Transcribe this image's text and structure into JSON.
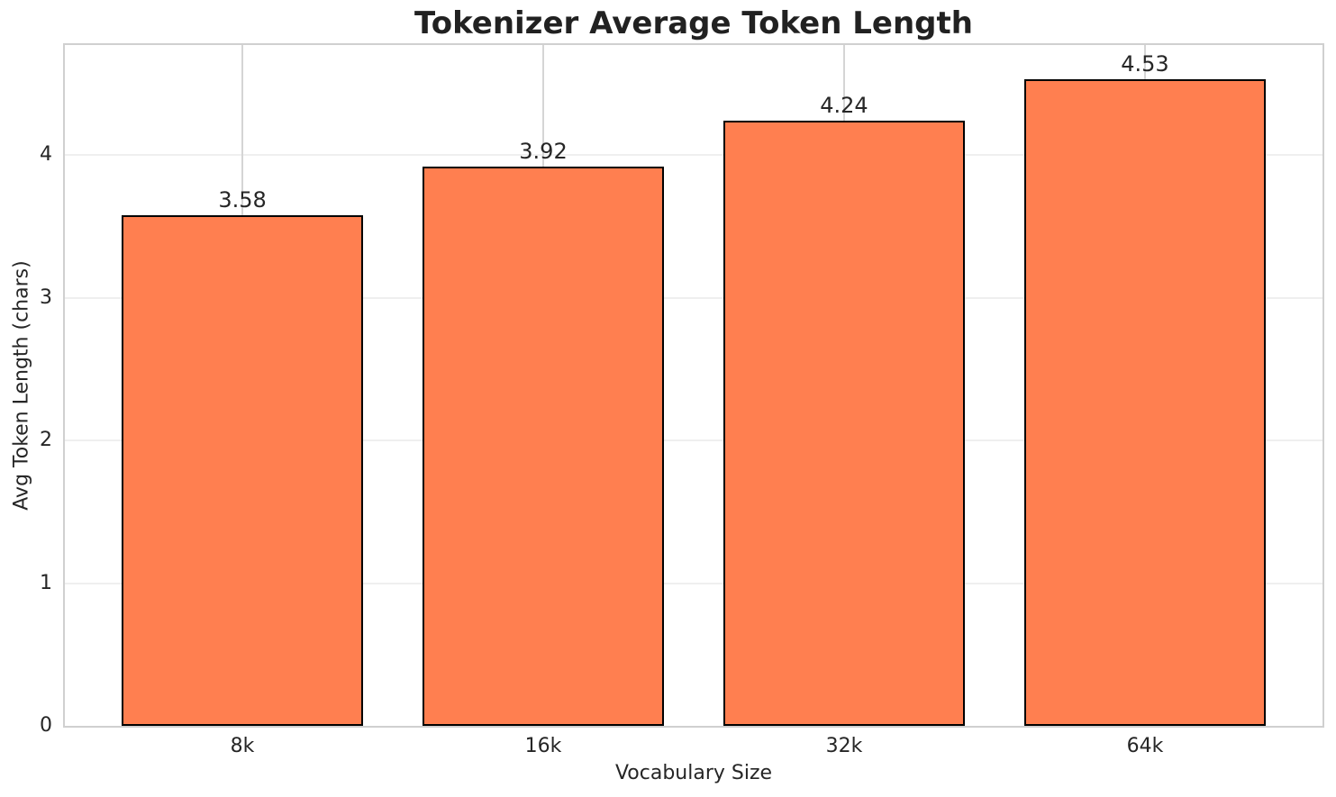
{
  "chart_data": {
    "type": "bar",
    "title": "Tokenizer Average Token Length",
    "xlabel": "Vocabulary Size",
    "ylabel": "Avg Token Length (chars)",
    "categories": [
      "8k",
      "16k",
      "32k",
      "64k"
    ],
    "values": [
      3.58,
      3.92,
      4.24,
      4.53
    ],
    "bar_labels": [
      "3.58",
      "3.92",
      "4.24",
      "4.53"
    ],
    "ytick_labels": [
      "0",
      "1",
      "2",
      "3",
      "4"
    ],
    "ytick_values": [
      0,
      1,
      2,
      3,
      4
    ],
    "ylim": [
      0,
      4.77
    ],
    "xlim": [
      -0.59,
      3.59
    ],
    "bar_width": 0.8,
    "grid": "on",
    "legend": "none",
    "colors": {
      "bar_fill": "#FF7F50",
      "bar_edge": "#000000",
      "h_gridline": "#EFEFEF",
      "v_gridline": "#D5D5D5",
      "spine": "#D0D0D0",
      "text": "#262626",
      "background": "#FFFFFF"
    }
  }
}
